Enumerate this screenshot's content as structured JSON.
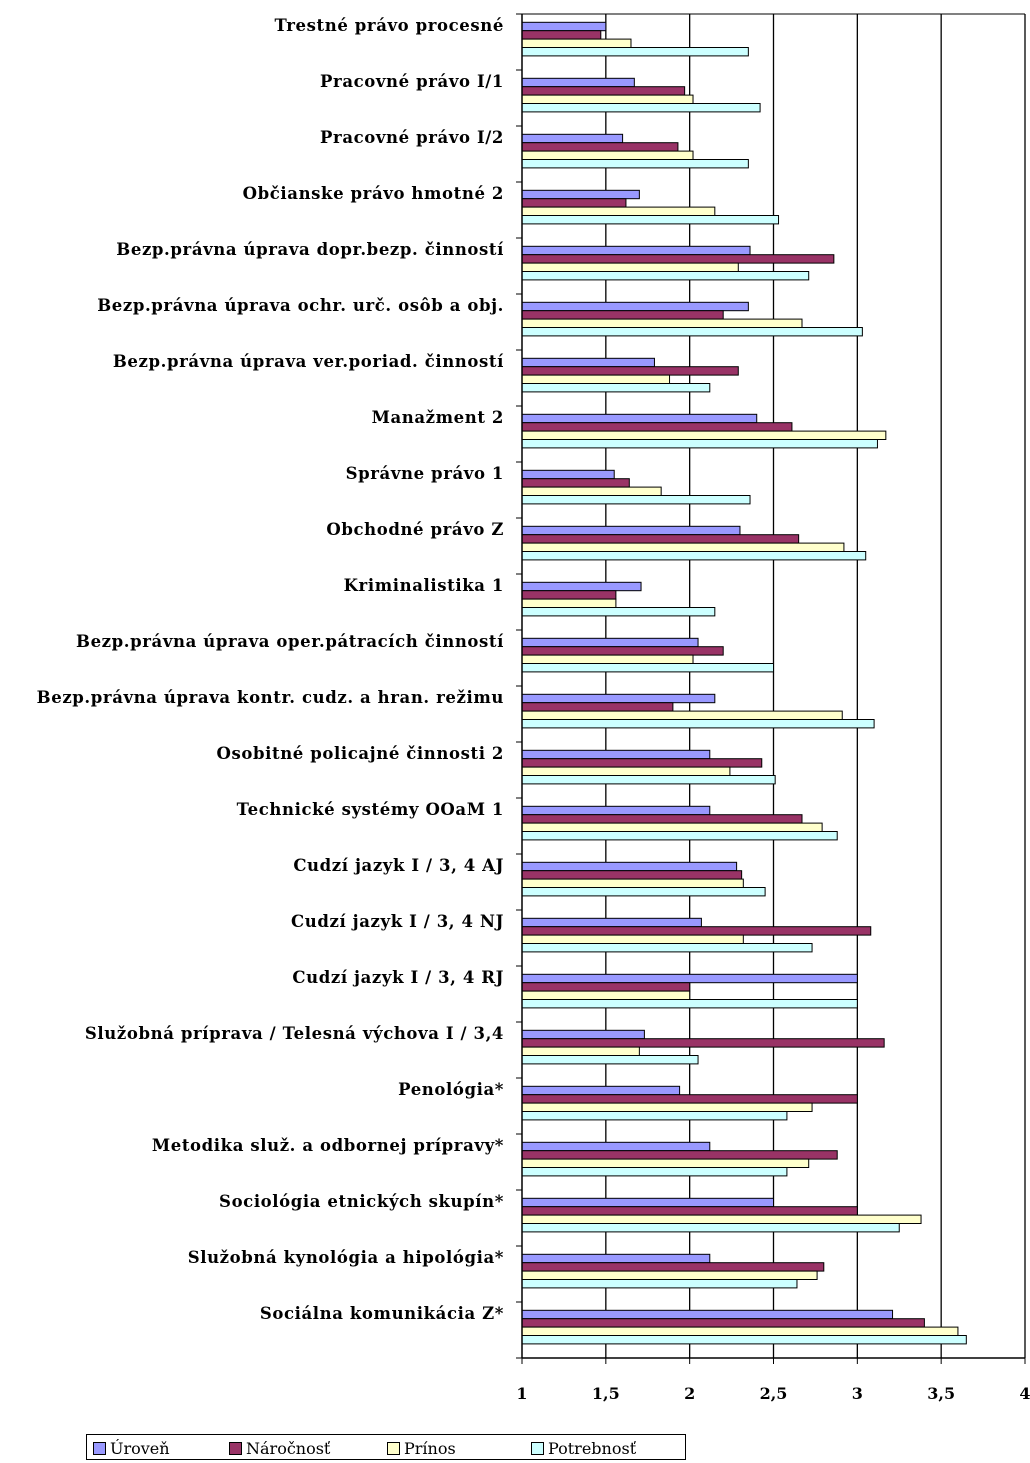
{
  "chart_data": {
    "type": "bar",
    "orientation": "horizontal",
    "categories": [
      "Trestné právo procesné",
      "Pracovné právo I/1",
      "Pracovné právo I/2",
      "Občianske právo hmotné 2",
      "Bezp.právna úprava dopr.bezp. činností",
      "Bezp.právna úprava ochr. urč. osôb a obj.",
      "Bezp.právna úprava ver.poriad. činností",
      "Manažment 2",
      "Správne právo 1",
      "Obchodné právo Z",
      "Kriminalistika 1",
      "Bezp.právna úprava oper.pátracích činností",
      "Bezp.právna úprava kontr. cudz. a hran. režimu",
      "Osobitné policajné činnosti 2",
      "Technické systémy OOaM 1",
      "Cudzí jazyk I / 3, 4 AJ",
      "Cudzí jazyk I / 3, 4 NJ",
      "Cudzí jazyk I / 3, 4 RJ",
      "Služobná príprava / Telesná výchova I / 3,4",
      "Penológia*",
      "Metodika služ. a odbornej prípravy*",
      "Sociológia etnických skupín*",
      "Služobná kynológia a hipológia*",
      "Sociálna komunikácia Z*"
    ],
    "series": [
      {
        "name": "Úroveň",
        "color": "#9999ff",
        "values": [
          1.5,
          1.67,
          1.6,
          1.7,
          2.36,
          2.35,
          1.79,
          2.4,
          1.55,
          2.3,
          1.71,
          2.05,
          2.15,
          2.12,
          2.12,
          2.28,
          2.07,
          3.0,
          1.73,
          1.94,
          2.12,
          2.5,
          2.12,
          3.21
        ]
      },
      {
        "name": "Náročnosť",
        "color": "#993366",
        "values": [
          1.47,
          1.97,
          1.93,
          1.62,
          2.86,
          2.2,
          2.29,
          2.61,
          1.64,
          2.65,
          1.56,
          2.2,
          1.9,
          2.43,
          2.67,
          2.31,
          3.08,
          2.0,
          3.16,
          3.0,
          2.88,
          3.0,
          2.8,
          3.4
        ]
      },
      {
        "name": "Prínos",
        "color": "#ffffcc",
        "values": [
          1.65,
          2.02,
          2.02,
          2.15,
          2.29,
          2.67,
          1.88,
          3.17,
          1.83,
          2.92,
          1.56,
          2.02,
          2.91,
          2.24,
          2.79,
          2.32,
          2.32,
          2.0,
          1.7,
          2.73,
          2.71,
          3.38,
          2.76,
          3.6
        ]
      },
      {
        "name": "Potrebnosť",
        "color": "#ccffff",
        "values": [
          2.35,
          2.42,
          2.35,
          2.53,
          2.71,
          3.03,
          2.12,
          3.12,
          2.36,
          3.05,
          2.15,
          2.5,
          3.1,
          2.51,
          2.88,
          2.45,
          2.73,
          3.0,
          2.05,
          2.58,
          2.58,
          3.25,
          2.64,
          3.65
        ]
      }
    ],
    "x_ticks": [
      "1",
      "1,5",
      "2",
      "2,5",
      "3",
      "3,5",
      "4"
    ],
    "xlim": [
      1,
      4
    ],
    "grid": "vertical major gridlines",
    "legend_position": "bottom",
    "title": "",
    "xlabel": "",
    "ylabel": ""
  }
}
